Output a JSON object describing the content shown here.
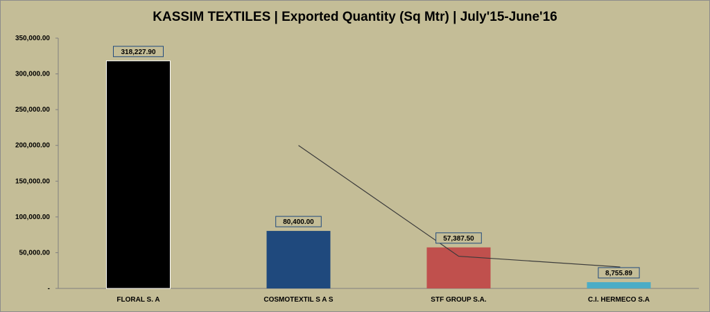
{
  "chart_data": {
    "type": "bar",
    "title": "KASSIM TEXTILES | Exported Quantity (Sq Mtr) | July'15-June'16",
    "categories": [
      "FLORAL S. A",
      "COSMOTEXTIL S A S",
      "STF GROUP S.A.",
      "C.I. HERMECO S.A"
    ],
    "values": [
      318227.9,
      80400.0,
      57387.5,
      8755.89
    ],
    "data_labels": [
      "318,227.90",
      "80,400.00",
      "57,387.50",
      "8,755.89"
    ],
    "colors": [
      "#000000",
      "#1f497d",
      "#c0504d",
      "#4bacc6"
    ],
    "ylim": [
      0,
      350000
    ],
    "yticks": [
      0,
      50000,
      100000,
      150000,
      200000,
      250000,
      300000,
      350000
    ],
    "ytick_labels": [
      "-",
      "50,000.00",
      "100,000.00",
      "150,000.00",
      "200,000.00",
      "250,000.00",
      "300,000.00",
      "350,000.00"
    ],
    "grid": false,
    "legend": "none",
    "trendline": {
      "type": "linear",
      "color": "#3a3a3a"
    },
    "xlabel": "",
    "ylabel": ""
  }
}
